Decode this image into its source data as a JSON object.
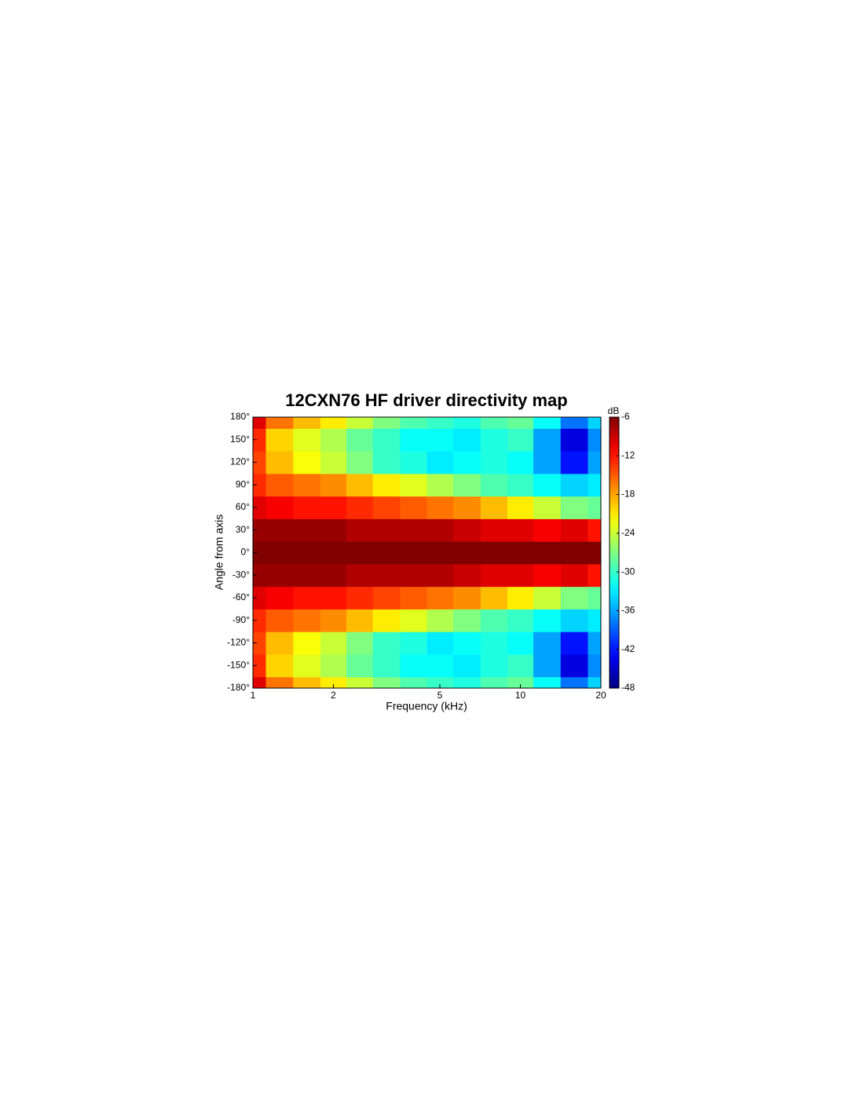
{
  "chart_data": {
    "type": "contour",
    "title": "12CXN76 HF driver directivity map",
    "x_label": "Frequency (kHz)",
    "y_label": "Angle from axis",
    "colorbar_label": "dB",
    "x": [
      1,
      1.25,
      1.6,
      2,
      2.5,
      3.15,
      4,
      5,
      6.3,
      8,
      10,
      12.5,
      16,
      20
    ],
    "y": [
      -180,
      -150,
      -120,
      -90,
      -60,
      -30,
      0,
      30,
      60,
      90,
      120,
      150,
      180
    ],
    "z": [
      [
        -10,
        -16,
        -19,
        -21,
        -24,
        -27,
        -29,
        -30,
        -31,
        -29,
        -28,
        -32,
        -38,
        -34
      ],
      [
        -13,
        -20,
        -23,
        -25,
        -28,
        -30,
        -32,
        -32,
        -33,
        -31,
        -30,
        -36,
        -44,
        -37
      ],
      [
        -14,
        -19,
        -22,
        -24,
        -27,
        -30,
        -31,
        -33,
        -32,
        -31,
        -32,
        -36,
        -42,
        -36
      ],
      [
        -13,
        -15,
        -16,
        -17,
        -19,
        -21,
        -23,
        -25,
        -27,
        -29,
        -30,
        -32,
        -34,
        -33
      ],
      [
        -10,
        -11,
        -12,
        -12,
        -13,
        -14,
        -15,
        -16,
        -17,
        -19,
        -21,
        -24,
        -27,
        -28
      ],
      [
        -7,
        -7,
        -7,
        -7,
        -8,
        -8,
        -8,
        -8,
        -9,
        -10,
        -10,
        -11,
        -10,
        -12
      ],
      [
        -6,
        -6,
        -6,
        -6,
        -6,
        -6,
        -6,
        -6,
        -6,
        -6,
        -6,
        -6,
        -6,
        -6
      ],
      [
        -7,
        -7,
        -7,
        -7,
        -8,
        -8,
        -8,
        -8,
        -9,
        -10,
        -10,
        -11,
        -10,
        -12
      ],
      [
        -10,
        -11,
        -12,
        -12,
        -13,
        -14,
        -15,
        -16,
        -17,
        -19,
        -21,
        -24,
        -27,
        -28
      ],
      [
        -13,
        -15,
        -16,
        -17,
        -19,
        -21,
        -23,
        -25,
        -27,
        -29,
        -30,
        -32,
        -34,
        -33
      ],
      [
        -14,
        -19,
        -22,
        -24,
        -27,
        -30,
        -31,
        -33,
        -32,
        -31,
        -32,
        -36,
        -42,
        -36
      ],
      [
        -13,
        -20,
        -23,
        -25,
        -28,
        -30,
        -32,
        -32,
        -33,
        -31,
        -30,
        -36,
        -44,
        -37
      ],
      [
        -10,
        -16,
        -19,
        -21,
        -24,
        -27,
        -29,
        -30,
        -31,
        -29,
        -28,
        -32,
        -38,
        -34
      ]
    ],
    "xlim": [
      1,
      20
    ],
    "xticks": [
      1,
      2,
      5,
      10,
      20
    ],
    "x_log": true,
    "ylim": [
      -180,
      180
    ],
    "yticks": [
      {
        "value": -180,
        "label": "-180°"
      },
      {
        "value": -150,
        "label": "-150°"
      },
      {
        "value": -120,
        "label": "-120°"
      },
      {
        "value": -90,
        "label": "-90°"
      },
      {
        "value": -60,
        "label": "-60°"
      },
      {
        "value": -30,
        "label": "-30°"
      },
      {
        "value": 0,
        "label": "0°"
      },
      {
        "value": 30,
        "label": "30°"
      },
      {
        "value": 60,
        "label": "60°"
      },
      {
        "value": 90,
        "label": "90°"
      },
      {
        "value": 120,
        "label": "120°"
      },
      {
        "value": 150,
        "label": "150°"
      },
      {
        "value": 180,
        "label": "180°"
      }
    ],
    "clim": [
      -48,
      -6
    ],
    "cticks": [
      -6,
      -12,
      -18,
      -24,
      -30,
      -36,
      -42,
      -48
    ],
    "colormap": "jet"
  }
}
